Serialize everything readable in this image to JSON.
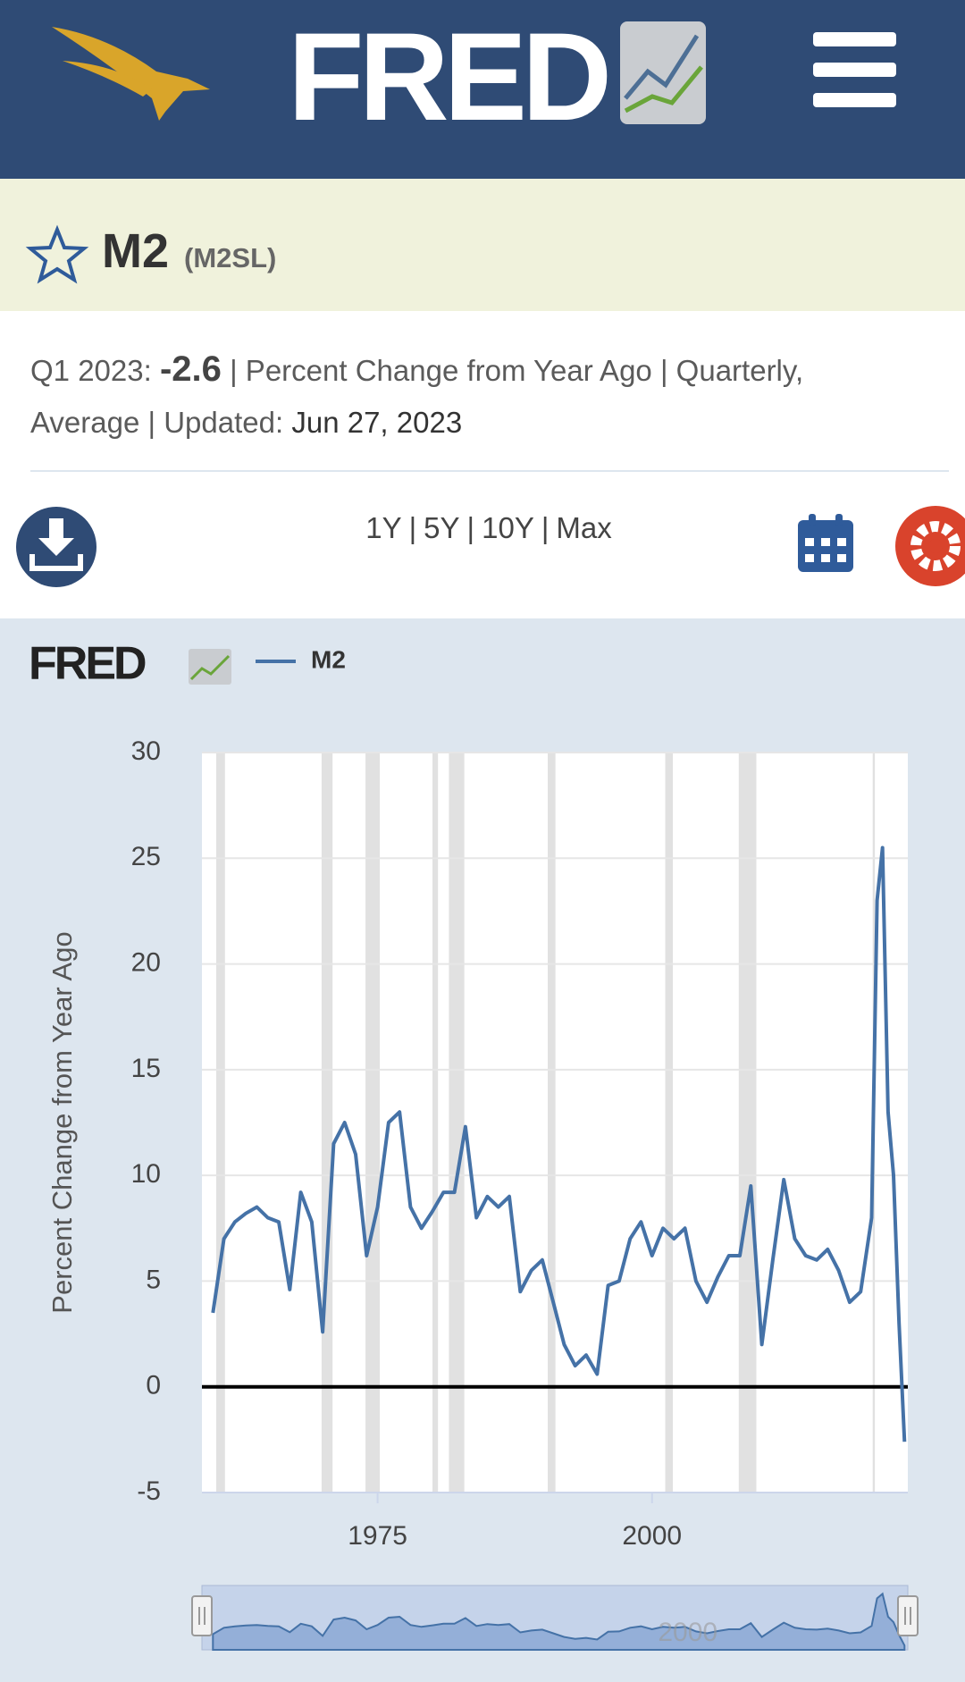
{
  "header": {
    "logo": "FRED"
  },
  "series_title": {
    "name": "M2",
    "id": "(M2SL)"
  },
  "info": {
    "period": "Q1 2023:",
    "value": "-2.6",
    "details": "| Percent Change from Year Ago | Quarterly, Average | Updated:",
    "updated": "Jun 27, 2023"
  },
  "ranges": {
    "options": [
      "1Y",
      "5Y",
      "10Y",
      "Max"
    ],
    "separator": "|"
  },
  "chart_data": {
    "type": "line",
    "y_label": "Percent Change from Year Ago",
    "x": [
      1960,
      1961,
      1962,
      1963,
      1964,
      1965,
      1966,
      1967,
      1968,
      1969,
      1970,
      1971,
      1972,
      1973,
      1974,
      1975,
      1976,
      1977,
      1978,
      1979,
      1980,
      1981,
      1982,
      1983,
      1984,
      1985,
      1986,
      1987,
      1988,
      1989,
      1990,
      1991,
      1992,
      1993,
      1994,
      1995,
      1996,
      1997,
      1998,
      1999,
      2000,
      2001,
      2002,
      2003,
      2004,
      2005,
      2006,
      2007,
      2008,
      2009,
      2010,
      2011,
      2012,
      2013,
      2014,
      2015,
      2016,
      2017,
      2018,
      2019,
      2020,
      2020.5,
      2021,
      2021.5,
      2022,
      2022.5,
      2023
    ],
    "series": [
      {
        "name": "M2",
        "color": "#4572a7",
        "values": [
          3.5,
          7.0,
          7.8,
          8.2,
          8.5,
          8.0,
          7.8,
          4.6,
          9.2,
          7.8,
          2.6,
          11.5,
          12.5,
          11.0,
          6.2,
          8.5,
          12.5,
          13.0,
          8.5,
          7.5,
          8.3,
          9.2,
          9.2,
          12.3,
          8.0,
          9.0,
          8.5,
          9.0,
          4.5,
          5.5,
          6.0,
          4.0,
          2.0,
          1.0,
          1.5,
          0.6,
          4.8,
          5.0,
          7.0,
          7.8,
          6.2,
          7.5,
          7.0,
          7.5,
          5.0,
          4.0,
          5.2,
          6.2,
          6.2,
          9.5,
          2.0,
          6.0,
          9.8,
          7.0,
          6.2,
          6.0,
          6.5,
          5.5,
          4.0,
          4.5,
          8.0,
          23.0,
          25.5,
          13.0,
          10.0,
          3.0,
          -2.6
        ]
      }
    ],
    "recessions": [
      [
        1960.3,
        1961.1
      ],
      [
        1969.9,
        1970.9
      ],
      [
        1973.9,
        1975.2
      ],
      [
        1980.0,
        1980.5
      ],
      [
        1981.5,
        1982.9
      ],
      [
        1990.5,
        1991.2
      ],
      [
        2001.2,
        2001.9
      ],
      [
        2007.9,
        2009.5
      ],
      [
        2020.1,
        2020.3
      ]
    ],
    "xlim": [
      1959,
      2023.3
    ],
    "ylim": [
      -5,
      30
    ],
    "xticks": [
      1975,
      2000
    ],
    "yticks": [
      -5,
      0,
      5,
      10,
      15,
      20,
      25,
      30
    ],
    "grid": true
  }
}
